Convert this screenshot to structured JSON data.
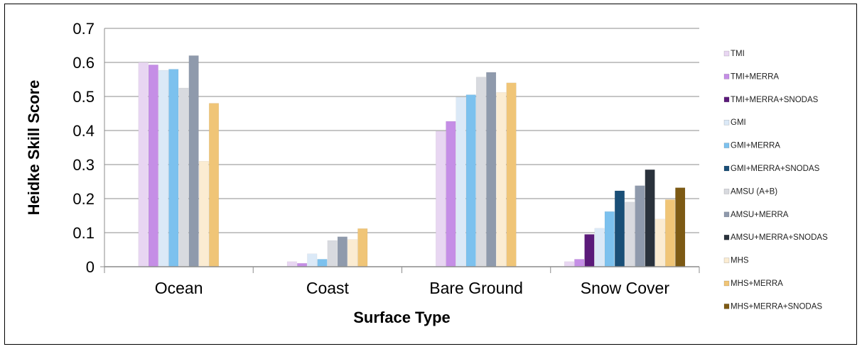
{
  "chart_data": {
    "type": "bar",
    "xlabel": "Surface Type",
    "ylabel": "Heidke Skill Score",
    "ylim": [
      0,
      0.7
    ],
    "yticks": [
      "0",
      "0.1",
      "0.2",
      "0.3",
      "0.4",
      "0.5",
      "0.6",
      "0.7"
    ],
    "grid": true,
    "legend_position": "right",
    "categories": [
      "Ocean",
      "Coast",
      "Bare Ground",
      "Snow Cover"
    ],
    "series": [
      {
        "name": "TMI",
        "color": "#e8d6f2",
        "values": [
          0.6,
          0.015,
          0.398,
          0.015
        ]
      },
      {
        "name": "TMI+MERRA",
        "color": "#c58ee6",
        "values": [
          0.593,
          0.01,
          0.427,
          0.022
        ]
      },
      {
        "name": "TMI+MERRA+SNODAS",
        "color": "#5b1a7a",
        "values": [
          null,
          null,
          null,
          0.095
        ]
      },
      {
        "name": "GMI",
        "color": "#dbe9f7",
        "values": [
          0.577,
          0.038,
          0.498,
          0.113
        ]
      },
      {
        "name": "GMI+MERRA",
        "color": "#7cc1ee",
        "values": [
          0.58,
          0.022,
          0.505,
          0.162
        ]
      },
      {
        "name": "GMI+MERRA+SNODAS",
        "color": "#1a4f77",
        "values": [
          null,
          null,
          null,
          0.223
        ]
      },
      {
        "name": "AMSU (A+B)",
        "color": "#d8dadf",
        "values": [
          0.525,
          0.077,
          0.557,
          0.19
        ]
      },
      {
        "name": "AMSU+MERRA",
        "color": "#8f9aac",
        "values": [
          0.62,
          0.088,
          0.571,
          0.238
        ]
      },
      {
        "name": "AMSU+MERRA+SNODAS",
        "color": "#2a323c",
        "values": [
          null,
          null,
          null,
          0.285
        ]
      },
      {
        "name": "MHS",
        "color": "#fbecd2",
        "values": [
          0.31,
          0.08,
          0.512,
          0.14
        ]
      },
      {
        "name": "MHS+MERRA",
        "color": "#f0c577",
        "values": [
          0.48,
          0.112,
          0.54,
          0.197
        ]
      },
      {
        "name": "MHS+MERRA+SNODAS",
        "color": "#7d5a14",
        "values": [
          null,
          null,
          null,
          0.232
        ]
      }
    ]
  }
}
